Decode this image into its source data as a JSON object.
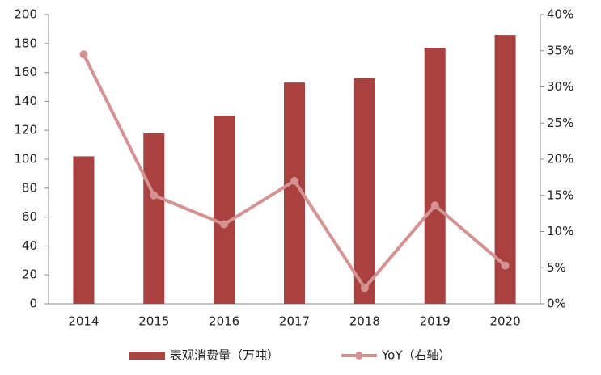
{
  "chart_data": {
    "type": "bar-line",
    "categories": [
      "2014",
      "2015",
      "2016",
      "2017",
      "2018",
      "2019",
      "2020"
    ],
    "series": [
      {
        "name": "表观消费量（万吨）",
        "type": "bar",
        "color": "#a8413f",
        "values": [
          102,
          118,
          130,
          153,
          156,
          177,
          186
        ]
      },
      {
        "name": "YoY（右轴）",
        "type": "line",
        "axis": "y2",
        "color": "#d49392",
        "values": [
          34.5,
          15,
          11,
          17,
          2.2,
          13.6,
          5.3
        ]
      }
    ],
    "ylim": [
      0,
      200
    ],
    "yticks": [
      0,
      20,
      40,
      60,
      80,
      100,
      120,
      140,
      160,
      180,
      200
    ],
    "y2lim": [
      0,
      40
    ],
    "y2ticks": [
      {
        "value": 0,
        "label": "0%"
      },
      {
        "value": 5,
        "label": "5%"
      },
      {
        "value": 10,
        "label": "10%"
      },
      {
        "value": 15,
        "label": "15%"
      },
      {
        "value": 20,
        "label": "20%"
      },
      {
        "value": 25,
        "label": "25%"
      },
      {
        "value": 30,
        "label": "30%"
      },
      {
        "value": 35,
        "label": "35%"
      },
      {
        "value": 40,
        "label": "40%"
      }
    ],
    "legend": "bottom"
  }
}
